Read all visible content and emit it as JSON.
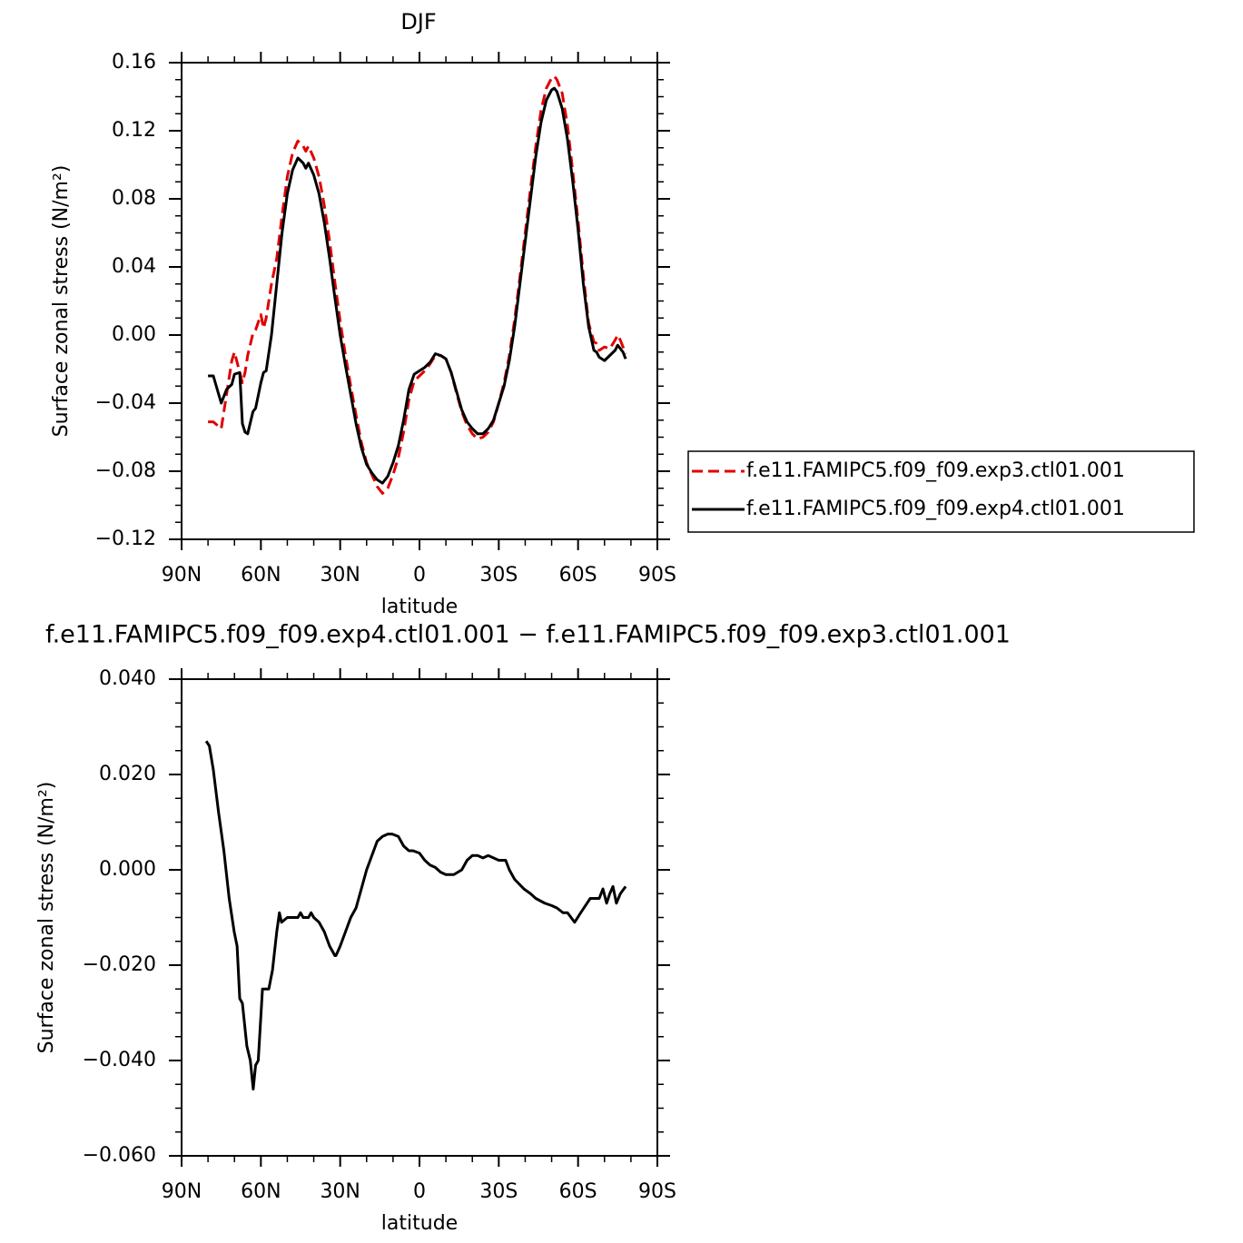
{
  "chart_data": [
    {
      "type": "line",
      "title": "DJF",
      "xlabel": "latitude",
      "ylabel": "Surface zonal stress (N/m²)",
      "xlim": [
        90,
        -90
      ],
      "xticks": [
        {
          "value": 90,
          "label": "90N"
        },
        {
          "value": 60,
          "label": "60N"
        },
        {
          "value": 30,
          "label": "30N"
        },
        0,
        {
          "value": -30,
          "label": "30S"
        },
        {
          "value": -60,
          "label": "60S"
        },
        {
          "value": -90,
          "label": "90S"
        }
      ],
      "ylim": [
        -0.12,
        0.16
      ],
      "yticks": [
        {
          "value": -0.12,
          "label": "−0.12"
        },
        {
          "value": -0.08,
          "label": "−0.08"
        },
        {
          "value": -0.04,
          "label": "−0.04"
        },
        {
          "value": 0,
          "label": "0.00"
        },
        0.04,
        0.08,
        0.12,
        0.16
      ],
      "legend": "right",
      "x": [
        80,
        78,
        75,
        73,
        71,
        70,
        68,
        67,
        66,
        65,
        63,
        62,
        60,
        59,
        58,
        56,
        54,
        52,
        50,
        48,
        46,
        44,
        43,
        42,
        40,
        38,
        36,
        34,
        32,
        30,
        28,
        26,
        24,
        22,
        20,
        18,
        16,
        14,
        12,
        10,
        8,
        6,
        4,
        2,
        0,
        -2,
        -4,
        -6,
        -8,
        -10,
        -12,
        -14,
        -16,
        -18,
        -20,
        -22,
        -24,
        -26,
        -28,
        -30,
        -32,
        -34,
        -36,
        -38,
        -40,
        -42,
        -44,
        -46,
        -48,
        -50,
        -51,
        -52,
        -54,
        -56,
        -58,
        -60,
        -62,
        -64,
        -66,
        -67,
        -68,
        -70,
        -72,
        -74,
        -75,
        -76,
        -77,
        -78
      ],
      "series": [
        {
          "name": "f.e11.FAMIPC5.f09_f09.exp3.ctl01.001",
          "color": "#e00000",
          "dash": true,
          "values": [
            -0.051,
            -0.051,
            -0.055,
            -0.035,
            -0.015,
            -0.01,
            -0.022,
            -0.028,
            -0.022,
            -0.012,
            0.001,
            0.003,
            0.012,
            0.004,
            0.01,
            0.03,
            0.045,
            0.07,
            0.093,
            0.107,
            0.114,
            0.111,
            0.108,
            0.111,
            0.104,
            0.093,
            0.076,
            0.055,
            0.031,
            0.008,
            -0.012,
            -0.03,
            -0.047,
            -0.063,
            -0.075,
            -0.082,
            -0.089,
            -0.093,
            -0.09,
            -0.082,
            -0.072,
            -0.057,
            -0.038,
            -0.027,
            -0.024,
            -0.021,
            -0.017,
            -0.012,
            -0.012,
            -0.014,
            -0.022,
            -0.034,
            -0.045,
            -0.053,
            -0.058,
            -0.061,
            -0.06,
            -0.057,
            -0.051,
            -0.04,
            -0.028,
            -0.012,
            0.009,
            0.034,
            0.06,
            0.086,
            0.111,
            0.132,
            0.145,
            0.151,
            0.152,
            0.15,
            0.142,
            0.123,
            0.096,
            0.067,
            0.035,
            0.007,
            -0.004,
            -0.005,
            -0.009,
            -0.007,
            -0.008,
            -0.003,
            0.0,
            -0.003,
            -0.007,
            -0.011
          ]
        },
        {
          "name": "f.e11.FAMIPC5.f09_f09.exp4.ctl01.001",
          "color": "#000000",
          "dash": false,
          "values": [
            -0.024,
            -0.024,
            -0.04,
            -0.032,
            -0.029,
            -0.023,
            -0.022,
            -0.052,
            -0.057,
            -0.058,
            -0.045,
            -0.043,
            -0.028,
            -0.022,
            -0.021,
            0.0,
            0.03,
            0.06,
            0.083,
            0.097,
            0.104,
            0.101,
            0.098,
            0.101,
            0.094,
            0.083,
            0.066,
            0.045,
            0.022,
            0.0,
            -0.018,
            -0.035,
            -0.052,
            -0.066,
            -0.076,
            -0.081,
            -0.085,
            -0.087,
            -0.083,
            -0.075,
            -0.065,
            -0.05,
            -0.032,
            -0.023,
            -0.021,
            -0.019,
            -0.016,
            -0.011,
            -0.012,
            -0.014,
            -0.022,
            -0.033,
            -0.044,
            -0.051,
            -0.055,
            -0.058,
            -0.058,
            -0.055,
            -0.05,
            -0.04,
            -0.03,
            -0.015,
            0.005,
            0.03,
            0.055,
            0.08,
            0.105,
            0.125,
            0.138,
            0.144,
            0.145,
            0.143,
            0.133,
            0.115,
            0.09,
            0.062,
            0.03,
            0.005,
            -0.009,
            -0.01,
            -0.013,
            -0.015,
            -0.012,
            -0.009,
            -0.006,
            -0.008,
            -0.01,
            -0.014
          ]
        }
      ]
    },
    {
      "type": "line",
      "title": "f.e11.FAMIPC5.f09_f09.exp4.ctl01.001 − f.e11.FAMIPC5.f09_f09.exp3.ctl01.001",
      "xlabel": "latitude",
      "ylabel": "Surface zonal stress (N/m²)",
      "xlim": [
        90,
        -90
      ],
      "xticks": [
        {
          "value": 90,
          "label": "90N"
        },
        {
          "value": 60,
          "label": "60N"
        },
        {
          "value": 30,
          "label": "30N"
        },
        0,
        {
          "value": -30,
          "label": "30S"
        },
        {
          "value": -60,
          "label": "60S"
        },
        {
          "value": -90,
          "label": "90S"
        }
      ],
      "ylim": [
        -0.06,
        0.04
      ],
      "yticks": [
        {
          "value": -0.06,
          "label": "−0.060"
        },
        {
          "value": -0.04,
          "label": "−0.040"
        },
        {
          "value": -0.02,
          "label": "−0.020"
        },
        {
          "value": 0,
          "label": "0.000"
        },
        {
          "value": 0.02,
          "label": "0.020"
        },
        {
          "value": 0.04,
          "label": "0.040"
        }
      ],
      "color": "#000000",
      "x": [
        80.7,
        79.5,
        78,
        76,
        74,
        72,
        70.1,
        69,
        68,
        67,
        65.3,
        64,
        62.9,
        62,
        61,
        59.4,
        57,
        55.6,
        54,
        53,
        52.2,
        50,
        48,
        46,
        45,
        44,
        42,
        41,
        40,
        38,
        36,
        34,
        32,
        31.6,
        30,
        28,
        26,
        24,
        22,
        20,
        18,
        16,
        14,
        12,
        10.3,
        8,
        6,
        4,
        2.4,
        0,
        -2,
        -4,
        -6,
        -8,
        -10,
        -13,
        -16,
        -18,
        -20,
        -22,
        -24,
        -26,
        -28,
        -30,
        -32.6,
        -34,
        -36,
        -39.5,
        -42,
        -44,
        -47.4,
        -50,
        -52,
        -54.3,
        -56,
        -58.7,
        -61,
        -64.6,
        -66,
        -68,
        -69.4,
        -70.8,
        -72,
        -73.2,
        -74.5,
        -76,
        -78
      ],
      "values": [
        0.027,
        0.026,
        0.021,
        0.012,
        0.004,
        -0.006,
        -0.013,
        -0.016,
        -0.027,
        -0.028,
        -0.037,
        -0.04,
        -0.046,
        -0.041,
        -0.04,
        -0.025,
        -0.025,
        -0.021,
        -0.013,
        -0.009,
        -0.011,
        -0.01,
        -0.01,
        -0.01,
        -0.009,
        -0.01,
        -0.01,
        -0.009,
        -0.01,
        -0.011,
        -0.013,
        -0.016,
        -0.018,
        -0.018,
        -0.016,
        -0.013,
        -0.01,
        -0.008,
        -0.004,
        0.0,
        0.003,
        0.006,
        0.007,
        0.0075,
        0.0075,
        0.007,
        0.005,
        0.004,
        0.004,
        0.0035,
        0.002,
        0.001,
        0.0005,
        -0.0005,
        -0.001,
        -0.001,
        0.0,
        0.002,
        0.003,
        0.003,
        0.0025,
        0.003,
        0.0025,
        0.002,
        0.002,
        0.0,
        -0.002,
        -0.004,
        -0.005,
        -0.006,
        -0.007,
        -0.0075,
        -0.008,
        -0.009,
        -0.009,
        -0.011,
        -0.009,
        -0.006,
        -0.006,
        -0.006,
        -0.004,
        -0.007,
        -0.005,
        -0.0035,
        -0.007,
        -0.005,
        -0.0035
      ]
    }
  ]
}
